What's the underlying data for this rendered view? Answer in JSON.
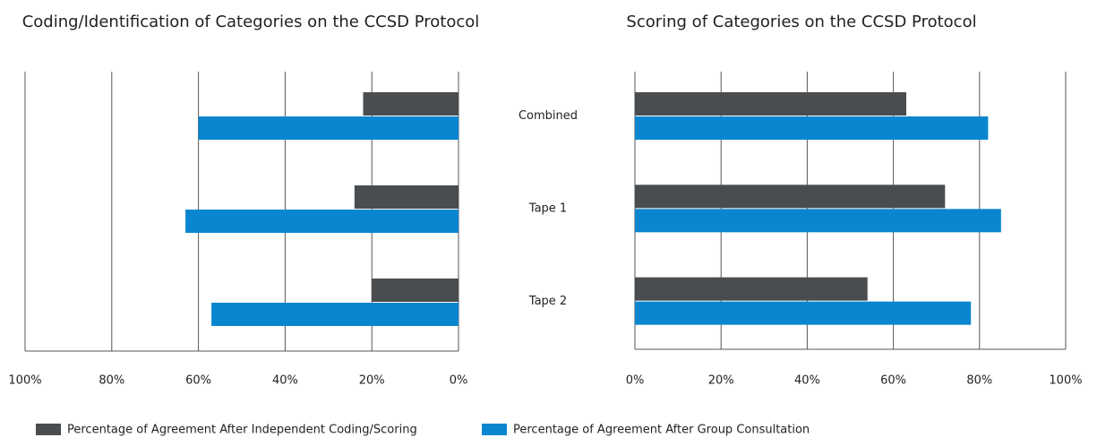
{
  "chart_data": [
    {
      "type": "bar",
      "orientation": "horizontal",
      "title": "Coding/Identification of Categories on the CCSD Protocol",
      "xlim": [
        100,
        0
      ],
      "xticks": [
        {
          "value": 100,
          "label": "100%"
        },
        {
          "value": 80,
          "label": "80%"
        },
        {
          "value": 60,
          "label": "60%"
        },
        {
          "value": 40,
          "label": "40%"
        },
        {
          "value": 20,
          "label": "20%"
        },
        {
          "value": 0,
          "label": "0%"
        }
      ],
      "grid": true,
      "series": [
        {
          "name": "Percentage of Agreement After Independent Coding/Scoring",
          "color": "#4a4d4f",
          "values": [
            22,
            24,
            20
          ]
        },
        {
          "name": "Percentage of Agreement After Group Consultation",
          "color": "#0a86d0",
          "values": [
            60,
            63,
            57
          ]
        }
      ],
      "legend": "bottom"
    },
    {
      "type": "bar",
      "orientation": "horizontal",
      "title": "Scoring of Categories on the CCSD Protocol",
      "categories": [
        "Combined",
        "Tape 1",
        "Tape 2"
      ],
      "xlim": [
        0,
        100
      ],
      "xticks": [
        {
          "value": 0,
          "label": "0%"
        },
        {
          "value": 20,
          "label": "20%"
        },
        {
          "value": 40,
          "label": "40%"
        },
        {
          "value": 60,
          "label": "60%"
        },
        {
          "value": 80,
          "label": "80%"
        },
        {
          "value": 100,
          "label": "100%"
        }
      ],
      "grid": true,
      "series": [
        {
          "color": "#4a4d4f",
          "values": [
            63,
            72,
            54
          ]
        },
        {
          "color": "#0a86d0",
          "values": [
            82,
            85,
            78
          ]
        }
      ]
    }
  ]
}
